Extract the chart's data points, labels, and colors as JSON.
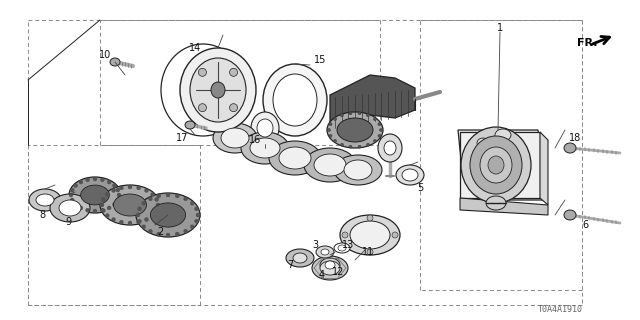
{
  "bg_color": "#ffffff",
  "fig_width": 6.4,
  "fig_height": 3.2,
  "dpi": 100,
  "watermark": "T0A4A1910",
  "label_fontsize": 7.0,
  "label_color": "#111111",
  "line_color": "#222222",
  "dash_color": "#888888"
}
